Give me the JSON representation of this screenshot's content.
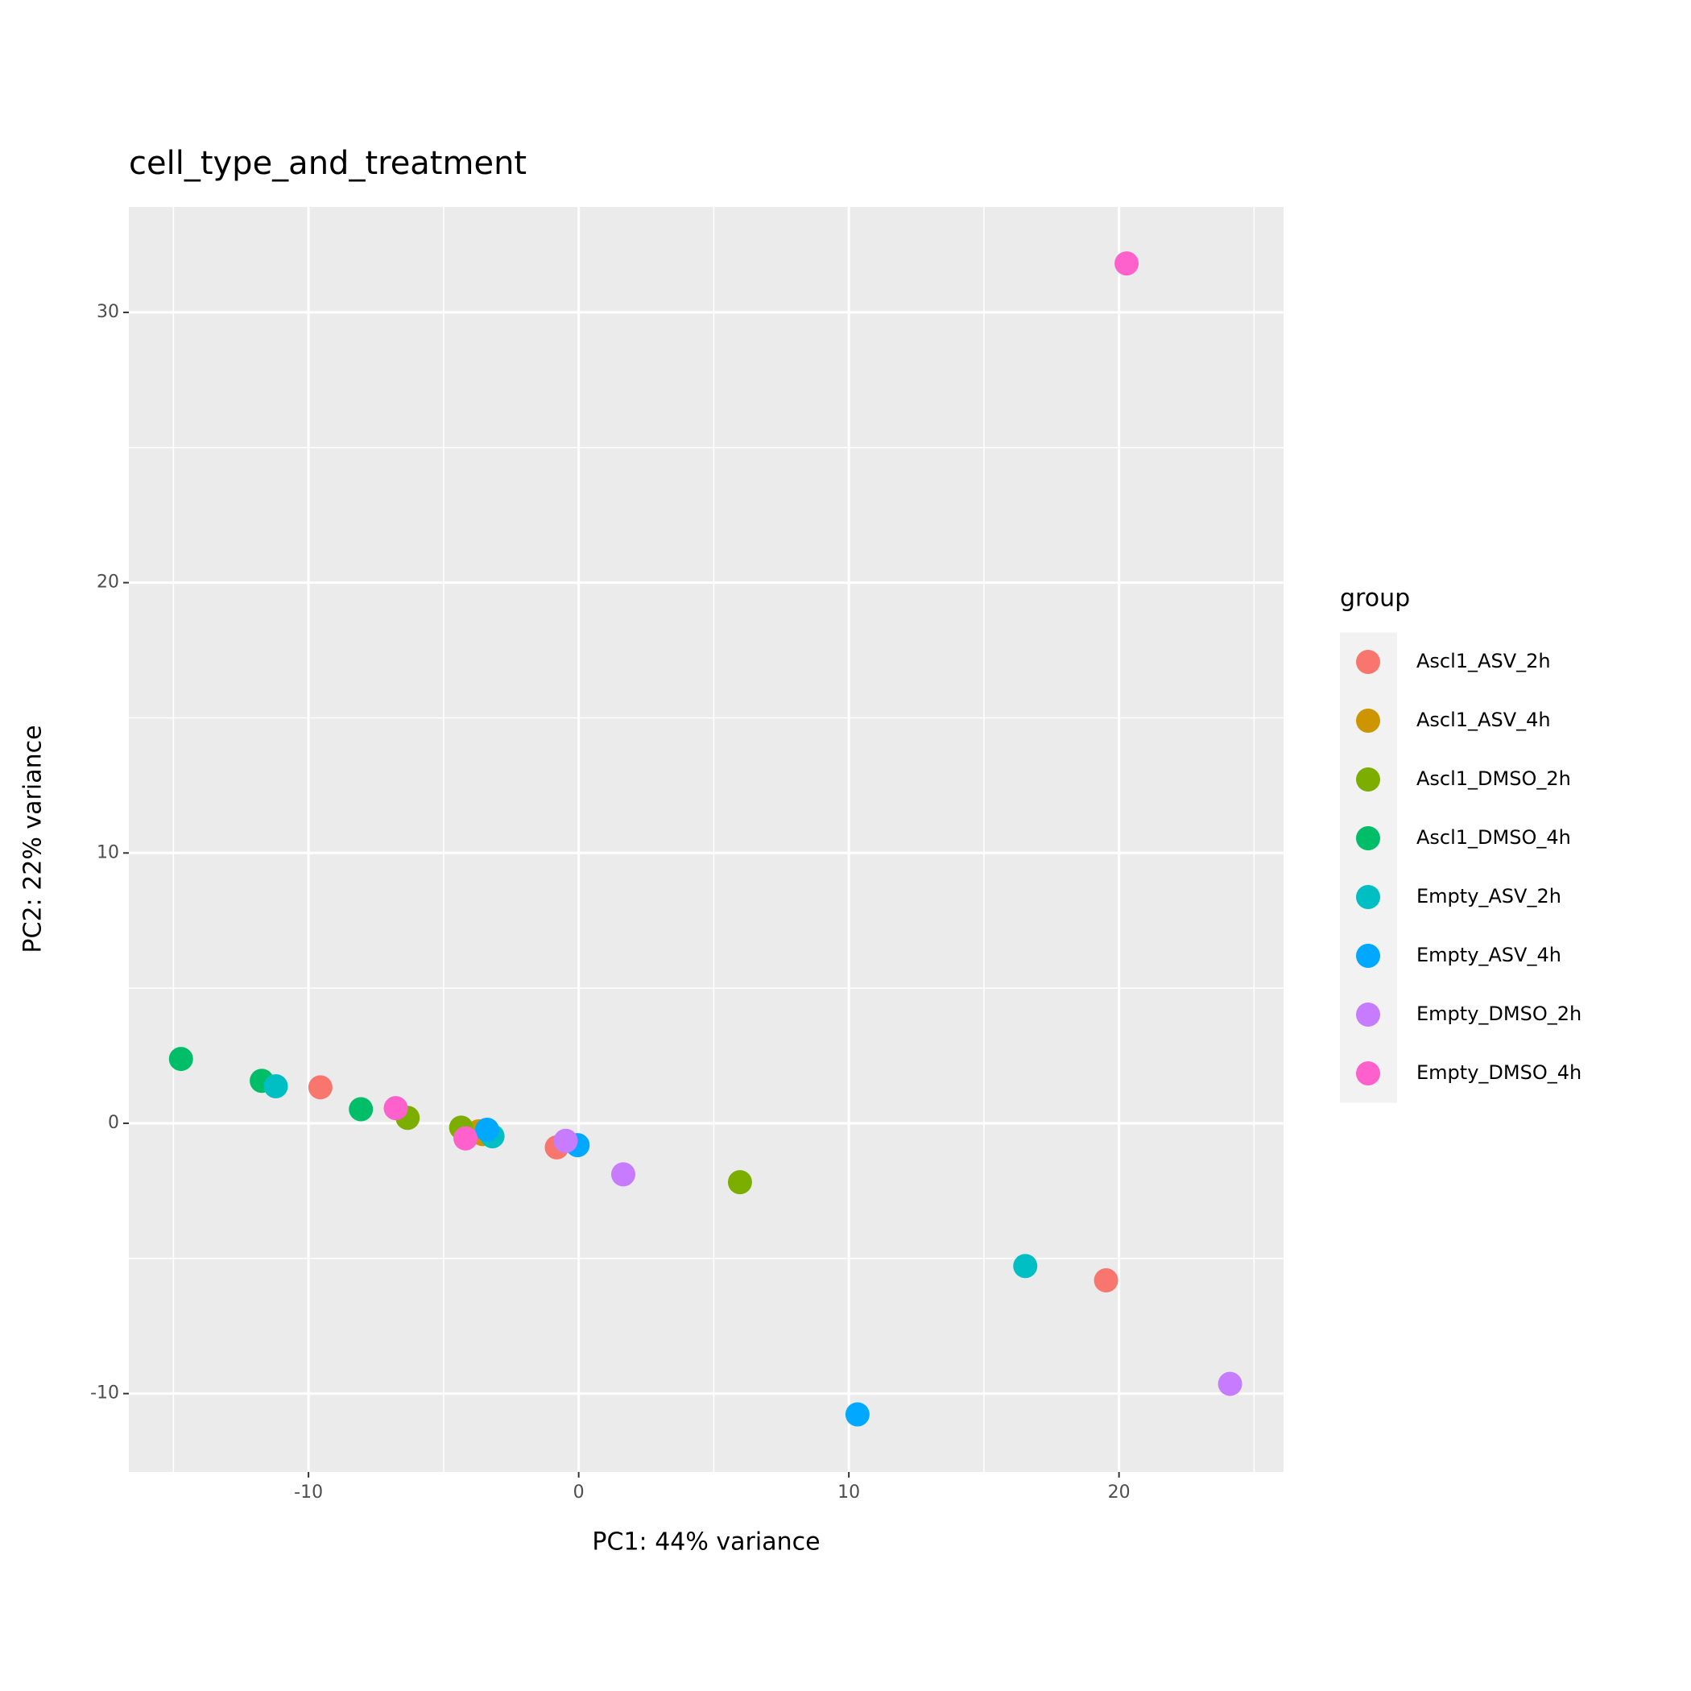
{
  "chart_data": {
    "type": "scatter",
    "title": "cell_type_and_treatment",
    "x_label": "PC1: 44% variance",
    "y_label": "PC2: 22% variance",
    "legend_title": "group",
    "legend_position": "right",
    "grid": true,
    "xlim": [
      -16.65,
      26.09
    ],
    "ylim": [
      -12.9,
      33.9
    ],
    "xticks": [
      -10,
      0,
      10,
      20
    ],
    "yticks": [
      -10,
      0,
      10,
      20,
      30
    ],
    "series": [
      {
        "name": "Ascl1_ASV_2h",
        "color": "#F8766D",
        "x": [
          -9.56,
          -0.81,
          19.52
        ],
        "values": [
          1.33,
          -0.89,
          -5.81
        ]
      },
      {
        "name": "Ascl1_ASV_4h",
        "color": "#CD9600",
        "x": [
          -3.55,
          -3.7
        ],
        "values": [
          -0.4,
          -0.3
        ]
      },
      {
        "name": "Ascl1_DMSO_2h",
        "color": "#7CAE00",
        "x": [
          -6.33,
          -4.35,
          5.97
        ],
        "values": [
          0.2,
          -0.16,
          -2.18
        ]
      },
      {
        "name": "Ascl1_DMSO_4h",
        "color": "#00BE67",
        "x": [
          -14.72,
          -11.73,
          -8.06
        ],
        "values": [
          2.38,
          1.57,
          0.52
        ]
      },
      {
        "name": "Empty_ASV_2h",
        "color": "#00BFC4",
        "x": [
          -11.21,
          -3.19,
          16.53
        ],
        "values": [
          1.37,
          -0.48,
          -5.28
        ]
      },
      {
        "name": "Empty_ASV_4h",
        "color": "#00A9FF",
        "x": [
          -3.39,
          -0.04,
          10.32
        ],
        "values": [
          -0.24,
          -0.81,
          -10.77
        ]
      },
      {
        "name": "Empty_DMSO_2h",
        "color": "#C77CFF",
        "x": [
          -0.48,
          1.65,
          24.11
        ],
        "values": [
          -0.65,
          -1.89,
          -9.64
        ]
      },
      {
        "name": "Empty_DMSO_4h",
        "color": "#FF61CC",
        "x": [
          -6.77,
          -4.19,
          20.28
        ],
        "values": [
          0.56,
          -0.56,
          31.81
        ]
      }
    ]
  }
}
